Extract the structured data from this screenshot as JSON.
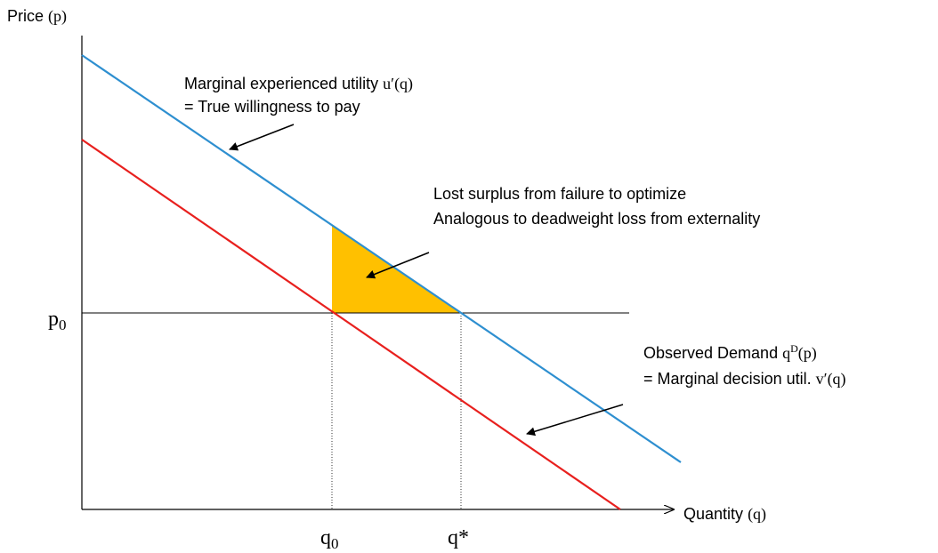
{
  "axes": {
    "y_label": {
      "word": "Price",
      "symbol": "(p)"
    },
    "x_label": {
      "word": "Quantity",
      "symbol": "(q)"
    }
  },
  "markers": {
    "p0": {
      "base": "p",
      "sub": "0"
    },
    "q0": {
      "base": "q",
      "sub": "0"
    },
    "qstar": "q*"
  },
  "labels": {
    "utility": {
      "line1": {
        "text": "Marginal experienced utility",
        "math": "u′(q)"
      },
      "line2": "= True willingness to pay"
    },
    "surplus": {
      "line1": "Lost surplus from failure to optimize",
      "line2": "Analogous to deadweight loss from externality"
    },
    "demand": {
      "line1": {
        "text": "Observed Demand",
        "math": "q",
        "sup": "D",
        "math2": "(p)"
      },
      "line2": {
        "text": "= Marginal decision util.",
        "math": "v′(q)"
      }
    }
  }
}
